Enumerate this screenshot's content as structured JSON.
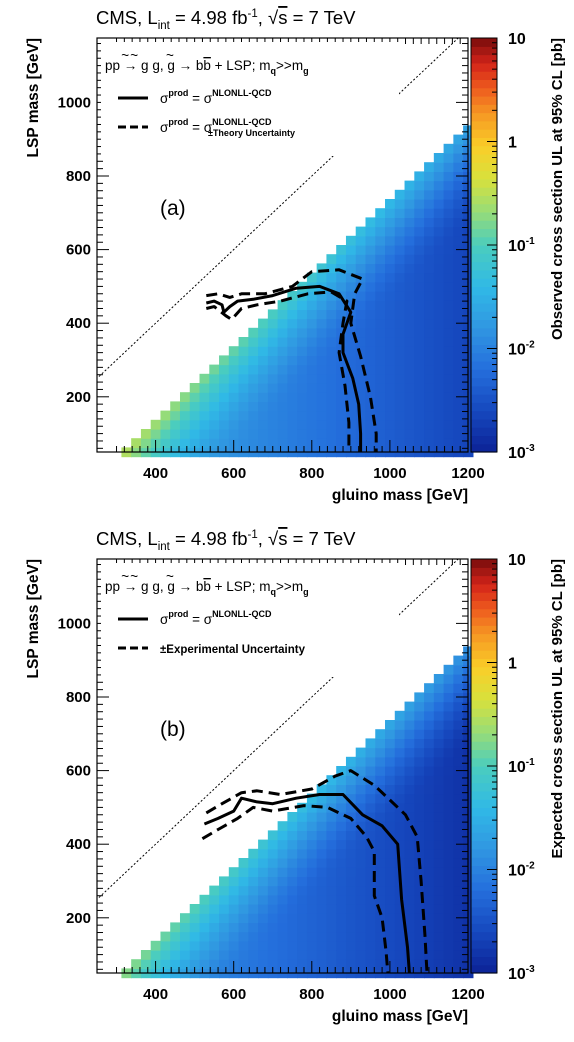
{
  "chart_data": [
    {
      "panel_label": "(a)",
      "type": "heatmap",
      "title": {
        "prefix": "CMS, L",
        "sub": "int",
        "mid": " = 4.98 fb",
        "sup": "-1",
        "sep": ", ",
        "sqrt": "√",
        "s": "s",
        "suffix": " = 7 TeV"
      },
      "process": {
        "a": "pp → ",
        "g1": "g",
        "g2": "g",
        "b": ", ",
        "g3": "g",
        "c": " → b",
        "bbar": "b",
        "d": " + LSP; m",
        "sq": "q",
        "e": ">>m",
        "sg": "g"
      },
      "xlabel": "gluino mass [GeV]",
      "ylabel": "LSP mass [GeV]",
      "zlabel": "Observed cross section UL at 95% CL [pb]",
      "xlim": [
        250,
        1200
      ],
      "ylim": [
        50,
        1175
      ],
      "zlim": [
        0.001,
        10
      ],
      "z_scale": "log",
      "x_ticks": [
        "400",
        "600",
        "800",
        "1000",
        "1200"
      ],
      "y_ticks": [
        "200",
        "400",
        "600",
        "800",
        "1000"
      ],
      "z_ticks": [
        {
          "base": "10",
          "exp": ""
        },
        {
          "base": "1",
          "exp": ""
        },
        {
          "base": "10",
          "exp": "-1"
        },
        {
          "base": "10",
          "exp": "-2"
        },
        {
          "base": "10",
          "exp": "-3"
        }
      ],
      "legend": [
        {
          "style": "solid",
          "sigma": "σ",
          "sup1": "prod",
          "eq": " = σ",
          "sup2": "NLONLL-QCD",
          "sub2": ""
        },
        {
          "style": "dashed",
          "sigma": "σ",
          "sup1": "prod",
          "eq": " = σ",
          "sup2": "NLONLL-QCD",
          "sub2": "±Theory Uncertainty"
        }
      ],
      "colors": {
        "low": "#0b2b9e",
        "high": "#7a0c0c",
        "contour": "#000000"
      },
      "contours": [
        {
          "style": "solid",
          "x": [
            530,
            550,
            570,
            575,
            590,
            610,
            650,
            700,
            760,
            820,
            870,
            900,
            880,
            880,
            905,
            920,
            925,
            925
          ],
          "y": [
            455,
            460,
            450,
            430,
            445,
            460,
            465,
            475,
            495,
            500,
            480,
            430,
            370,
            320,
            250,
            180,
            100,
            50
          ]
        },
        {
          "style": "dashed",
          "x": [
            530,
            550,
            580,
            595,
            620,
            660,
            720,
            790,
            850,
            890,
            880,
            870,
            885,
            895,
            895
          ],
          "y": [
            440,
            445,
            420,
            410,
            440,
            450,
            460,
            480,
            485,
            460,
            400,
            320,
            230,
            130,
            50
          ]
        },
        {
          "style": "dashed",
          "x": [
            530,
            560,
            590,
            620,
            680,
            750,
            800,
            870,
            930,
            910,
            900,
            925,
            950,
            965,
            965
          ],
          "y": [
            475,
            480,
            470,
            480,
            480,
            500,
            540,
            545,
            520,
            480,
            400,
            310,
            200,
            100,
            50
          ]
        }
      ]
    },
    {
      "panel_label": "(b)",
      "type": "heatmap",
      "title": {
        "prefix": "CMS, L",
        "sub": "int",
        "mid": " = 4.98 fb",
        "sup": "-1",
        "sep": ", ",
        "sqrt": "√",
        "s": "s",
        "suffix": " = 7 TeV"
      },
      "process": {
        "a": "pp → ",
        "g1": "g",
        "g2": "g",
        "b": ", ",
        "g3": "g",
        "c": " → b",
        "bbar": "b",
        "d": " + LSP; m",
        "sq": "q",
        "e": ">>m",
        "sg": "g"
      },
      "xlabel": "gluino mass [GeV]",
      "ylabel": "LSP mass [GeV]",
      "zlabel": "Expected cross section UL at 95% CL [pb]",
      "xlim": [
        250,
        1200
      ],
      "ylim": [
        50,
        1175
      ],
      "zlim": [
        0.001,
        10
      ],
      "z_scale": "log",
      "x_ticks": [
        "400",
        "600",
        "800",
        "1000",
        "1200"
      ],
      "y_ticks": [
        "200",
        "400",
        "600",
        "800",
        "1000"
      ],
      "z_ticks": [
        {
          "base": "10",
          "exp": ""
        },
        {
          "base": "1",
          "exp": ""
        },
        {
          "base": "10",
          "exp": "-1"
        },
        {
          "base": "10",
          "exp": "-2"
        },
        {
          "base": "10",
          "exp": "-3"
        }
      ],
      "legend": [
        {
          "style": "solid",
          "sigma": "σ",
          "sup1": "prod",
          "eq": " = σ",
          "sup2": "NLONLL-QCD",
          "sub2": ""
        },
        {
          "style": "dashed",
          "text": "±Experimental Uncertainty"
        }
      ],
      "colors": {
        "low": "#0b2b9e",
        "high": "#7a0c0c",
        "contour": "#000000"
      },
      "contours": [
        {
          "style": "solid",
          "x": [
            525,
            560,
            600,
            620,
            660,
            700,
            760,
            820,
            880,
            930,
            980,
            1020,
            1030,
            1045,
            1050
          ],
          "y": [
            455,
            470,
            490,
            525,
            515,
            510,
            525,
            535,
            535,
            480,
            450,
            400,
            250,
            120,
            50
          ]
        },
        {
          "style": "dashed",
          "x": [
            520,
            560,
            610,
            650,
            700,
            780,
            840,
            900,
            940,
            960,
            960,
            960,
            980,
            990,
            995
          ],
          "y": [
            415,
            440,
            470,
            500,
            490,
            505,
            500,
            470,
            420,
            380,
            320,
            260,
            200,
            110,
            50
          ]
        },
        {
          "style": "dashed",
          "x": [
            530,
            570,
            620,
            660,
            720,
            800,
            860,
            900,
            960,
            1000,
            1040,
            1070,
            1080,
            1090,
            1095
          ],
          "y": [
            485,
            510,
            540,
            545,
            535,
            550,
            585,
            600,
            560,
            520,
            480,
            420,
            300,
            150,
            50
          ]
        }
      ]
    }
  ]
}
